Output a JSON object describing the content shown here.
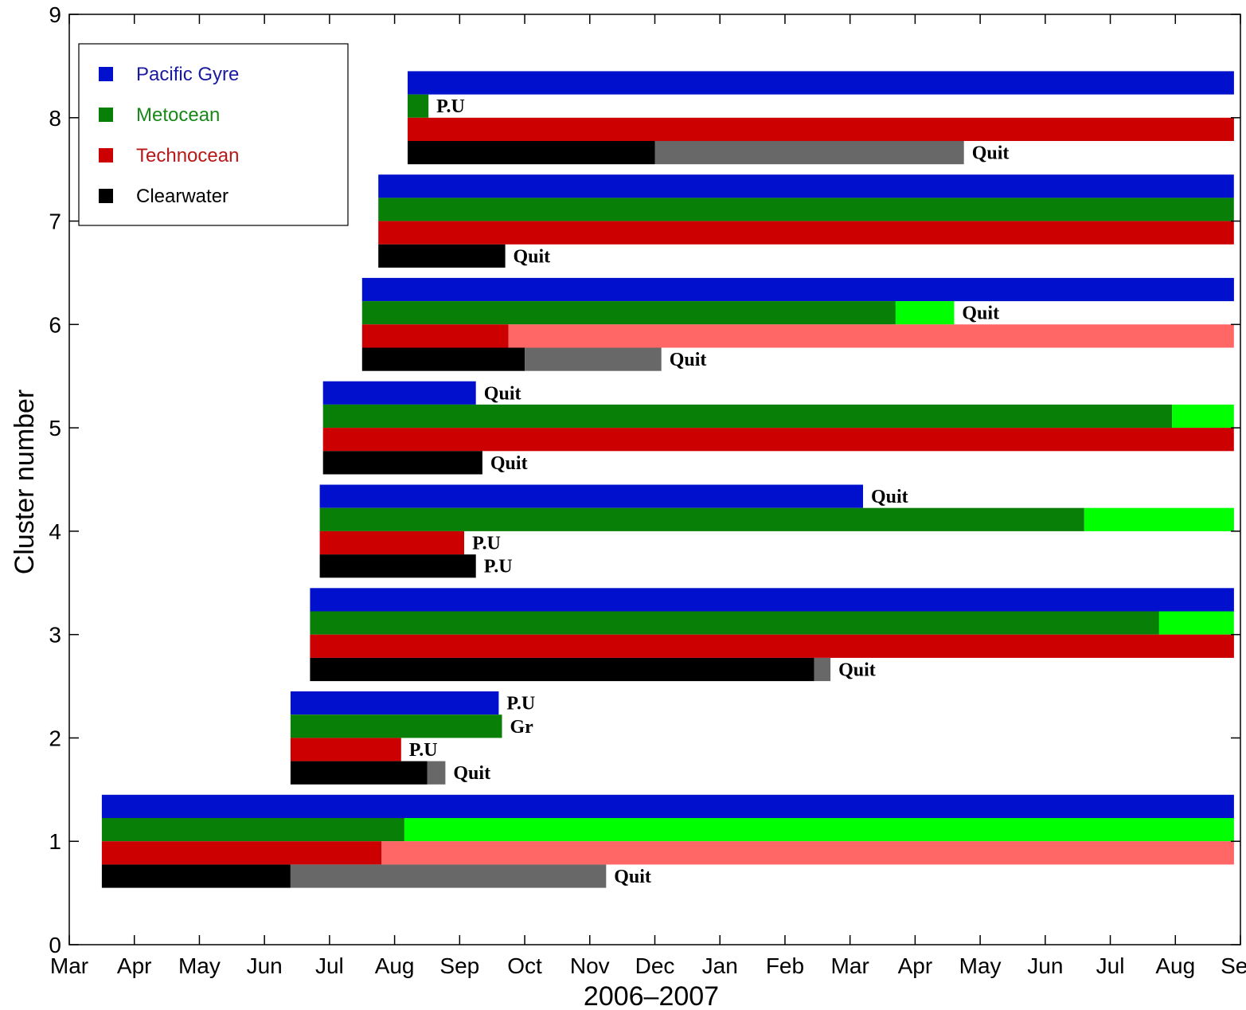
{
  "chart_data": {
    "type": "bar",
    "orientation": "horizontal-timeline",
    "title": "",
    "xlabel": "2006–2007",
    "ylabel": "Cluster number",
    "x_ticks": [
      "Mar",
      "Apr",
      "May",
      "Jun",
      "Jul",
      "Aug",
      "Sep",
      "Oct",
      "Nov",
      "Dec",
      "Jan",
      "Feb",
      "Mar",
      "Apr",
      "May",
      "Jun",
      "Jul",
      "Aug",
      "Sep"
    ],
    "x_unit": "months since 2006-03-01",
    "xlim": [
      0,
      18
    ],
    "ylim": [
      0,
      9
    ],
    "y_ticks": [
      "0",
      "1",
      "2",
      "3",
      "4",
      "5",
      "6",
      "7",
      "8",
      "9"
    ],
    "grid": false,
    "legend_position": "top-left",
    "legend": [
      {
        "name": "Pacific Gyre",
        "color": "#0010cc",
        "text_color": "#1a1aa0"
      },
      {
        "name": "Metocean",
        "color": "#088008",
        "text_color": "#188818"
      },
      {
        "name": "Technocean",
        "color": "#cc0000",
        "text_color": "#b81818"
      },
      {
        "name": "Clearwater",
        "color": "#000000",
        "text_color": "#000000"
      }
    ],
    "colors": {
      "Pacific Gyre": "#0010cc",
      "Metocean": "#088008",
      "Metocean_light": "#00ff00",
      "Technocean": "#cc0000",
      "Technocean_light": "#ff6666",
      "Clearwater": "#000000",
      "Clearwater_light": "#686868"
    },
    "clusters": [
      {
        "cluster": 1,
        "bars": [
          {
            "series": "Pacific Gyre",
            "segments": [
              {
                "start": 0.5,
                "end": 17.9,
                "shade": "main"
              }
            ],
            "label": ""
          },
          {
            "series": "Metocean",
            "segments": [
              {
                "start": 0.5,
                "end": 5.15,
                "shade": "main"
              },
              {
                "start": 5.15,
                "end": 17.9,
                "shade": "light"
              }
            ],
            "label": ""
          },
          {
            "series": "Technocean",
            "segments": [
              {
                "start": 0.5,
                "end": 4.8,
                "shade": "main"
              },
              {
                "start": 4.8,
                "end": 17.9,
                "shade": "light"
              }
            ],
            "label": ""
          },
          {
            "series": "Clearwater",
            "segments": [
              {
                "start": 0.5,
                "end": 3.4,
                "shade": "main"
              },
              {
                "start": 3.4,
                "end": 8.25,
                "shade": "light"
              }
            ],
            "label": "Quit"
          }
        ]
      },
      {
        "cluster": 2,
        "bars": [
          {
            "series": "Pacific Gyre",
            "segments": [
              {
                "start": 3.4,
                "end": 6.6,
                "shade": "main"
              }
            ],
            "label": "P.U"
          },
          {
            "series": "Metocean",
            "segments": [
              {
                "start": 3.4,
                "end": 6.65,
                "shade": "main"
              }
            ],
            "label": "Gr"
          },
          {
            "series": "Technocean",
            "segments": [
              {
                "start": 3.4,
                "end": 5.1,
                "shade": "main"
              }
            ],
            "label": "P.U"
          },
          {
            "series": "Clearwater",
            "segments": [
              {
                "start": 3.4,
                "end": 5.5,
                "shade": "main"
              },
              {
                "start": 5.5,
                "end": 5.78,
                "shade": "light"
              }
            ],
            "label": "Quit"
          }
        ]
      },
      {
        "cluster": 3,
        "bars": [
          {
            "series": "Pacific Gyre",
            "segments": [
              {
                "start": 3.7,
                "end": 17.9,
                "shade": "main"
              }
            ],
            "label": ""
          },
          {
            "series": "Metocean",
            "segments": [
              {
                "start": 3.7,
                "end": 16.75,
                "shade": "main"
              },
              {
                "start": 16.75,
                "end": 17.9,
                "shade": "light"
              }
            ],
            "label": ""
          },
          {
            "series": "Technocean",
            "segments": [
              {
                "start": 3.7,
                "end": 17.9,
                "shade": "main"
              }
            ],
            "label": ""
          },
          {
            "series": "Clearwater",
            "segments": [
              {
                "start": 3.7,
                "end": 11.45,
                "shade": "main"
              },
              {
                "start": 11.45,
                "end": 11.7,
                "shade": "light"
              }
            ],
            "label": "Quit"
          }
        ]
      },
      {
        "cluster": 4,
        "bars": [
          {
            "series": "Pacific Gyre",
            "segments": [
              {
                "start": 3.85,
                "end": 12.2,
                "shade": "main"
              }
            ],
            "label": "Quit"
          },
          {
            "series": "Metocean",
            "segments": [
              {
                "start": 3.85,
                "end": 15.6,
                "shade": "main"
              },
              {
                "start": 15.6,
                "end": 17.9,
                "shade": "light"
              }
            ],
            "label": ""
          },
          {
            "series": "Technocean",
            "segments": [
              {
                "start": 3.85,
                "end": 6.07,
                "shade": "main"
              }
            ],
            "label": "P.U"
          },
          {
            "series": "Clearwater",
            "segments": [
              {
                "start": 3.85,
                "end": 6.25,
                "shade": "main"
              }
            ],
            "label": "P.U"
          }
        ]
      },
      {
        "cluster": 5,
        "bars": [
          {
            "series": "Pacific Gyre",
            "segments": [
              {
                "start": 3.9,
                "end": 6.25,
                "shade": "main"
              }
            ],
            "label": "Quit"
          },
          {
            "series": "Metocean",
            "segments": [
              {
                "start": 3.9,
                "end": 16.95,
                "shade": "main"
              },
              {
                "start": 16.95,
                "end": 17.9,
                "shade": "light"
              }
            ],
            "label": ""
          },
          {
            "series": "Technocean",
            "segments": [
              {
                "start": 3.9,
                "end": 17.9,
                "shade": "main"
              }
            ],
            "label": ""
          },
          {
            "series": "Clearwater",
            "segments": [
              {
                "start": 3.9,
                "end": 6.35,
                "shade": "main"
              }
            ],
            "label": "Quit"
          }
        ]
      },
      {
        "cluster": 6,
        "bars": [
          {
            "series": "Pacific Gyre",
            "segments": [
              {
                "start": 4.5,
                "end": 17.9,
                "shade": "main"
              }
            ],
            "label": ""
          },
          {
            "series": "Metocean",
            "segments": [
              {
                "start": 4.5,
                "end": 12.7,
                "shade": "main"
              },
              {
                "start": 12.7,
                "end": 13.6,
                "shade": "light"
              }
            ],
            "label": "Quit"
          },
          {
            "series": "Technocean",
            "segments": [
              {
                "start": 4.5,
                "end": 6.75,
                "shade": "main"
              },
              {
                "start": 6.75,
                "end": 17.9,
                "shade": "light"
              }
            ],
            "label": ""
          },
          {
            "series": "Clearwater",
            "segments": [
              {
                "start": 4.5,
                "end": 7.0,
                "shade": "main"
              },
              {
                "start": 7.0,
                "end": 9.1,
                "shade": "light"
              }
            ],
            "label": "Quit"
          }
        ]
      },
      {
        "cluster": 7,
        "bars": [
          {
            "series": "Pacific Gyre",
            "segments": [
              {
                "start": 4.75,
                "end": 17.9,
                "shade": "main"
              }
            ],
            "label": ""
          },
          {
            "series": "Metocean",
            "segments": [
              {
                "start": 4.75,
                "end": 17.9,
                "shade": "main"
              }
            ],
            "label": ""
          },
          {
            "series": "Technocean",
            "segments": [
              {
                "start": 4.75,
                "end": 17.9,
                "shade": "main"
              }
            ],
            "label": ""
          },
          {
            "series": "Clearwater",
            "segments": [
              {
                "start": 4.75,
                "end": 6.7,
                "shade": "main"
              }
            ],
            "label": "Quit"
          }
        ]
      },
      {
        "cluster": 8,
        "bars": [
          {
            "series": "Pacific Gyre",
            "segments": [
              {
                "start": 5.2,
                "end": 17.9,
                "shade": "main"
              }
            ],
            "label": ""
          },
          {
            "series": "Metocean",
            "segments": [
              {
                "start": 5.2,
                "end": 5.52,
                "shade": "main"
              }
            ],
            "label": "P.U"
          },
          {
            "series": "Technocean",
            "segments": [
              {
                "start": 5.2,
                "end": 17.9,
                "shade": "main"
              }
            ],
            "label": ""
          },
          {
            "series": "Clearwater",
            "segments": [
              {
                "start": 5.2,
                "end": 9.0,
                "shade": "main"
              },
              {
                "start": 9.0,
                "end": 13.75,
                "shade": "light"
              }
            ],
            "label": "Quit"
          }
        ]
      }
    ]
  }
}
